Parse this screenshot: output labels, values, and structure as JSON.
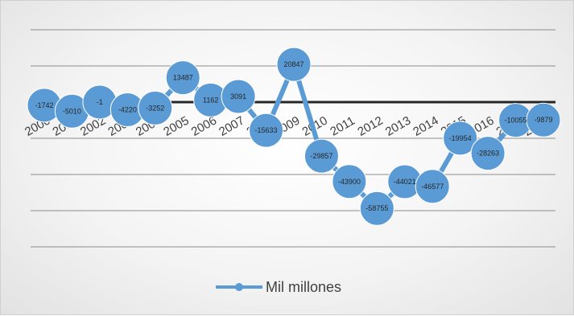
{
  "chart_data": {
    "type": "line",
    "title": "",
    "xlabel": "",
    "ylabel": "",
    "categories": [
      "2000",
      "2001",
      "2002",
      "2003",
      "2004",
      "2005",
      "2006",
      "2007",
      "2008",
      "2009",
      "2010",
      "2011",
      "2012",
      "2013",
      "2014",
      "2015",
      "2016",
      "2017",
      "2018"
    ],
    "series": [
      {
        "name": "Mil millones",
        "values": [
          -1742,
          -5010,
          -1,
          -4220,
          -3252,
          13487,
          1162,
          3091,
          -15633,
          20847,
          -29857,
          -43900,
          -58755,
          -44021,
          -46577,
          -19954,
          -28263,
          -10055,
          -9879
        ]
      }
    ],
    "ylim": [
      -80000,
      40000
    ],
    "gridlines": [
      40000,
      20000,
      -20000,
      -40000,
      -60000,
      -80000
    ],
    "zero_line": true,
    "legend_position": "bottom",
    "colors": {
      "series": "#5b9bd5",
      "marker_border": "#ffffff",
      "gridline": "#8c8c8c",
      "zero_line": "#262626"
    }
  }
}
